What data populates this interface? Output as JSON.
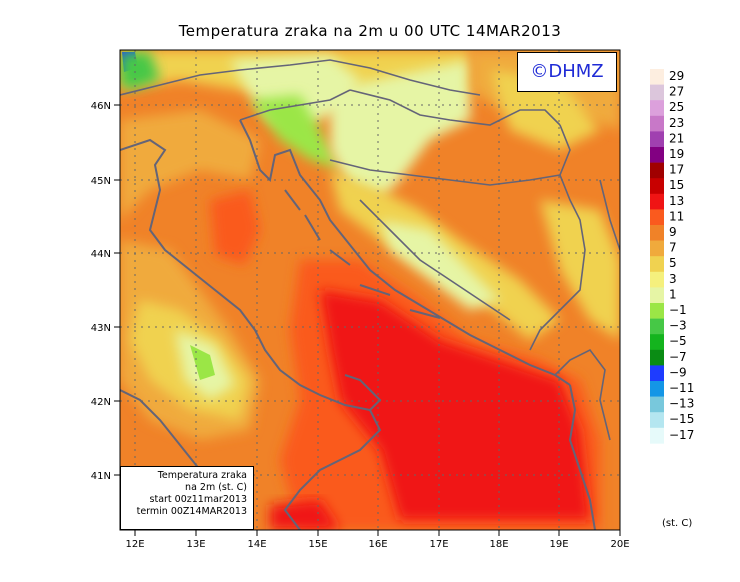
{
  "title": "Temperatura zraka na 2m u 00 UTC 14MAR2013",
  "logo_text": "©DHMZ",
  "info_box": {
    "line1": "Temperatura zraka",
    "line2": "na 2m (st. C)",
    "line3": "start 00z11mar2013",
    "line4": "termin 00Z14MAR2013"
  },
  "lat_labels": [
    "46N",
    "45N",
    "44N",
    "43N",
    "42N",
    "41N"
  ],
  "lon_labels": [
    "12E",
    "13E",
    "14E",
    "15E",
    "16E",
    "17E",
    "18E",
    "19E",
    "20E"
  ],
  "colorbar": {
    "unit": "(st. C)",
    "labels": [
      "29",
      "27",
      "25",
      "23",
      "21",
      "19",
      "17",
      "15",
      "13",
      "11",
      "9",
      "7",
      "5",
      "3",
      "1",
      "−1",
      "−3",
      "−5",
      "−7",
      "−9",
      "−11",
      "−13",
      "−15",
      "−17"
    ],
    "colors": [
      "#fdeee0",
      "#dcc6dc",
      "#dca0dc",
      "#c878c8",
      "#a040b0",
      "#820082",
      "#a00000",
      "#c80000",
      "#f01414",
      "#fa5a1e",
      "#f08228",
      "#f0aa3c",
      "#f0d250",
      "#f5f07d",
      "#e6f5a5",
      "#9be646",
      "#46c846",
      "#14b41e",
      "#0a8c14",
      "#1e3cff",
      "#1496e6",
      "#78c8dc",
      "#b4e6f0",
      "#e6fafa"
    ]
  },
  "colors": {
    "sea_warm": "#f01414",
    "sea_mid": "#fa5a1e",
    "land_orange": "#f08228",
    "land_yellow": "#f0d250",
    "cold_green": "#9be646",
    "coastline": "#646478"
  }
}
